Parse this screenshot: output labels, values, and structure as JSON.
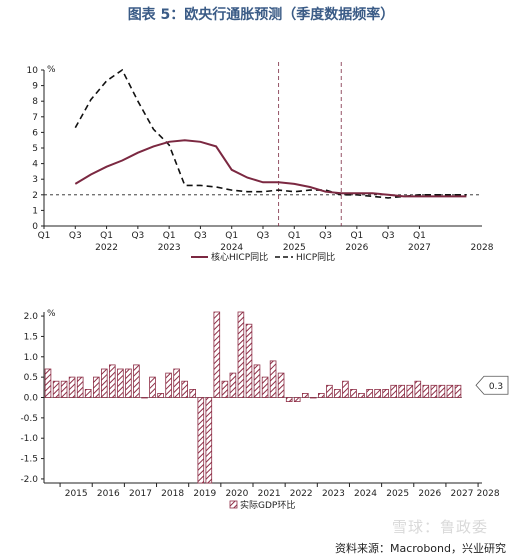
{
  "figure": {
    "title": "图表 5：欧央行通胀预测（季度数据频率）",
    "source": "资料来源：Macrobond，兴业研究",
    "watermark": "雪球：鲁政委"
  },
  "colors": {
    "title": "#3a5b86",
    "core_hicp": "#7b2841",
    "hicp": "#111111",
    "gdp_bar": "#8e2f47"
  },
  "chart_data": [
    {
      "type": "line",
      "title": "",
      "xlabel": "",
      "ylabel": "%",
      "ylim": [
        0,
        10
      ],
      "yticks": [
        0,
        1,
        2,
        3,
        4,
        5,
        6,
        7,
        8,
        9,
        10
      ],
      "x_quarter_labels": [
        "Q1",
        "Q3",
        "Q1",
        "Q3",
        "Q1",
        "Q3",
        "Q1",
        "Q3",
        "Q1",
        "Q3",
        "Q1",
        "Q3",
        "Q1"
      ],
      "x_year_labels": [
        "2022",
        "2023",
        "2024",
        "2025",
        "2026",
        "2027",
        "2028"
      ],
      "x_range_quarters": [
        "2021Q1",
        "2028Q1"
      ],
      "vertical_dashed_lines": [
        "2024Q4",
        "2025Q4"
      ],
      "reference_line": 2,
      "series": [
        {
          "name": "核心HICP同比",
          "style": "solid",
          "x": [
            "2021Q3",
            "2021Q4",
            "2022Q1",
            "2022Q2",
            "2022Q3",
            "2022Q4",
            "2023Q1",
            "2023Q2",
            "2023Q3",
            "2023Q4",
            "2024Q1",
            "2024Q2",
            "2024Q3",
            "2024Q4",
            "2025Q1",
            "2025Q2",
            "2025Q3",
            "2025Q4",
            "2026Q1",
            "2026Q2",
            "2026Q3",
            "2026Q4",
            "2027Q1",
            "2027Q2",
            "2027Q3",
            "2027Q4"
          ],
          "values": [
            2.7,
            3.3,
            3.8,
            4.2,
            4.7,
            5.1,
            5.4,
            5.5,
            5.4,
            5.1,
            3.6,
            3.1,
            2.8,
            2.8,
            2.7,
            2.5,
            2.2,
            2.1,
            2.1,
            2.1,
            2.0,
            1.9,
            1.9,
            1.9,
            1.9,
            1.9
          ]
        },
        {
          "name": "HICP同比",
          "style": "dashed",
          "x": [
            "2021Q3",
            "2021Q4",
            "2022Q1",
            "2022Q2",
            "2022Q3",
            "2022Q4",
            "2023Q1",
            "2023Q2",
            "2023Q3",
            "2023Q4",
            "2024Q1",
            "2024Q2",
            "2024Q3",
            "2024Q4",
            "2025Q1",
            "2025Q2",
            "2025Q3",
            "2025Q4",
            "2026Q1",
            "2026Q2",
            "2026Q3",
            "2026Q4",
            "2027Q1",
            "2027Q2",
            "2027Q3",
            "2027Q4"
          ],
          "values": [
            6.3,
            8.1,
            9.3,
            10.0,
            8.0,
            6.2,
            5.2,
            2.6,
            2.6,
            2.5,
            2.3,
            2.2,
            2.2,
            2.3,
            2.2,
            2.3,
            2.3,
            2.0,
            2.0,
            1.9,
            1.8,
            1.9,
            2.0,
            2.0,
            2.0,
            2.0
          ]
        }
      ]
    },
    {
      "type": "bar",
      "title": "",
      "xlabel": "",
      "ylabel": "%",
      "ylim": [
        -2.1,
        2.1
      ],
      "yticks": [
        -2.0,
        -1.5,
        -1.0,
        -0.5,
        0.0,
        0.5,
        1.0,
        1.5,
        2.0
      ],
      "x_year_labels": [
        "2015",
        "2016",
        "2017",
        "2018",
        "2019",
        "2020",
        "2021",
        "2022",
        "2023",
        "2024",
        "2025",
        "2026",
        "2027",
        "2028"
      ],
      "x_range_quarters": [
        "2014Q3",
        "2027Q4"
      ],
      "callout_value": "0.3",
      "series": [
        {
          "name": "实际GDP环比",
          "start_quarter": "2014Q3",
          "values": [
            0.7,
            0.4,
            0.4,
            0.5,
            0.5,
            0.2,
            0.5,
            0.7,
            0.8,
            0.7,
            0.7,
            0.8,
            0.0,
            0.5,
            0.1,
            0.6,
            0.7,
            0.4,
            0.2,
            -2.1,
            -2.1,
            2.1,
            0.4,
            0.6,
            2.1,
            1.8,
            0.8,
            0.5,
            0.9,
            0.6,
            -0.1,
            -0.1,
            0.1,
            0.0,
            0.1,
            0.3,
            0.2,
            0.4,
            0.2,
            0.1,
            0.2,
            0.2,
            0.2,
            0.3,
            0.3,
            0.3,
            0.4,
            0.3,
            0.3,
            0.3,
            0.3,
            0.3
          ]
        }
      ]
    }
  ]
}
